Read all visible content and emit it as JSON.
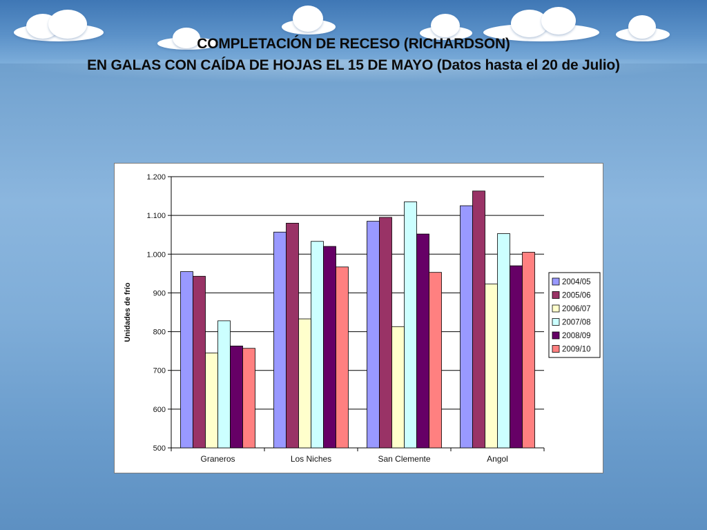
{
  "slide": {
    "title_line1": "COMPLETACIÓN DE RECESO (RICHARDSON)",
    "title_line2": "EN GALAS CON CAÍDA DE HOJAS EL 15 DE MAYO (Datos hasta el 20 de Julio)"
  },
  "chart_data": {
    "type": "bar",
    "title": "",
    "xlabel": "",
    "ylabel": "Unidades de frío",
    "ylim": [
      500,
      1200
    ],
    "y_ticks": [
      "500",
      "600",
      "700",
      "800",
      "900",
      "1.000",
      "1.100",
      "1.200"
    ],
    "y_tick_values": [
      500,
      600,
      700,
      800,
      900,
      1000,
      1100,
      1200
    ],
    "grid": "horizontal",
    "legend_position": "right",
    "categories": [
      "Graneros",
      "Los Niches",
      "San Clemente",
      "Angol"
    ],
    "series": [
      {
        "name": "2004/05",
        "color": "#9999ff",
        "values": [
          955,
          1057,
          1085,
          1125
        ]
      },
      {
        "name": "2005/06",
        "color": "#993366",
        "values": [
          943,
          1080,
          1095,
          1163
        ]
      },
      {
        "name": "2006/07",
        "color": "#ffffcc",
        "values": [
          745,
          833,
          813,
          923
        ]
      },
      {
        "name": "2007/08",
        "color": "#ccffff",
        "values": [
          828,
          1033,
          1135,
          1053
        ]
      },
      {
        "name": "2008/09",
        "color": "#660066",
        "values": [
          763,
          1020,
          1052,
          970
        ]
      },
      {
        "name": "2009/10",
        "color": "#ff8080",
        "values": [
          757,
          967,
          953,
          1005
        ]
      }
    ]
  }
}
